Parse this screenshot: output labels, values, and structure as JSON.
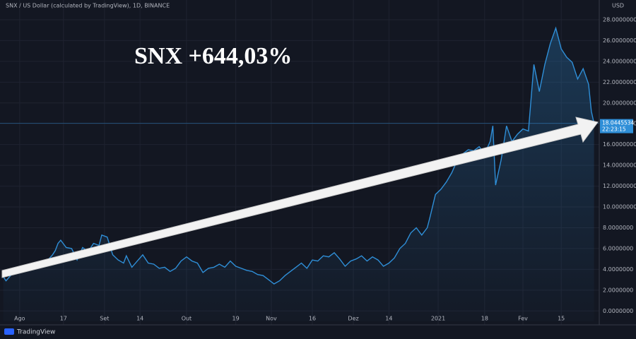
{
  "chart_data": {
    "type": "line",
    "title": "SNX / US Dollar (calculated by TradingView), 1D, BINANCE",
    "currency": "USD",
    "annotation": "SNX +644,03%",
    "countdown": "22:23:15",
    "brand": "TradingView",
    "color": "#2f8fd8",
    "grid": true,
    "x": [
      -6,
      -5,
      -3,
      0,
      2,
      4,
      6,
      8,
      10,
      12,
      13,
      14,
      15,
      17,
      19,
      21,
      23,
      25,
      27,
      29,
      30,
      32,
      34,
      36,
      38,
      39,
      41,
      43,
      45,
      47,
      49,
      51,
      53,
      55,
      57,
      59,
      61,
      63,
      65,
      67,
      69,
      71,
      73,
      75,
      77,
      79,
      81,
      83,
      85,
      87,
      89,
      91,
      93,
      95,
      97,
      99,
      101,
      103,
      105,
      107,
      109,
      111,
      113,
      115,
      117,
      119,
      121,
      123,
      125,
      127,
      129,
      131,
      133,
      135,
      137,
      139,
      141,
      143,
      145,
      147,
      149,
      150,
      152,
      154,
      156,
      158,
      160,
      162,
      164,
      166,
      168,
      170,
      172,
      173,
      174,
      176,
      178,
      180,
      182,
      184,
      186,
      188,
      190,
      192,
      194,
      196,
      198,
      200,
      202,
      204,
      206,
      208,
      209,
      210
    ],
    "values": [
      3.3,
      2.9,
      3.5,
      3.9,
      4.2,
      4.3,
      4.2,
      4.3,
      4.8,
      5.4,
      5.8,
      6.5,
      6.8,
      6.1,
      6.0,
      4.9,
      6.1,
      5.7,
      6.5,
      6.3,
      7.3,
      7.1,
      5.4,
      4.9,
      4.6,
      5.3,
      4.2,
      4.8,
      5.4,
      4.6,
      4.5,
      4.1,
      4.2,
      3.8,
      4.1,
      4.8,
      5.2,
      4.8,
      4.6,
      3.7,
      4.1,
      4.2,
      4.5,
      4.2,
      4.8,
      4.3,
      4.1,
      3.9,
      3.8,
      3.5,
      3.4,
      3.0,
      2.6,
      2.9,
      3.4,
      3.8,
      4.2,
      4.6,
      4.1,
      4.9,
      4.8,
      5.3,
      5.2,
      5.6,
      5.0,
      4.3,
      4.8,
      5.0,
      5.3,
      4.8,
      5.2,
      4.9,
      4.3,
      4.6,
      5.1,
      6.0,
      6.5,
      7.5,
      8.0,
      7.3,
      8.0,
      9.0,
      11.2,
      11.7,
      12.4,
      13.3,
      14.5,
      15.1,
      15.5,
      15.4,
      15.8,
      15.1,
      16.3,
      17.8,
      12.1,
      14.5,
      17.8,
      16.3,
      17.0,
      17.5,
      17.3,
      23.7,
      21.1,
      23.7,
      25.7,
      27.2,
      25.2,
      24.4,
      23.9,
      22.3,
      23.3,
      21.8,
      19.2,
      18.0445534
    ],
    "xlim": [
      -7.2,
      211.9
    ],
    "xticks": [
      {
        "value": 0,
        "label": "Ago"
      },
      {
        "value": 16,
        "label": "17"
      },
      {
        "value": 31,
        "label": "Set"
      },
      {
        "value": 44,
        "label": "14"
      },
      {
        "value": 61,
        "label": "Out"
      },
      {
        "value": 79,
        "label": "19"
      },
      {
        "value": 92,
        "label": "Nov"
      },
      {
        "value": 107,
        "label": "16"
      },
      {
        "value": 122,
        "label": "Dez"
      },
      {
        "value": 135,
        "label": "14"
      },
      {
        "value": 153,
        "label": "2021"
      },
      {
        "value": 170,
        "label": "18"
      },
      {
        "value": 184,
        "label": "Fev"
      },
      {
        "value": 198,
        "label": "15"
      }
    ],
    "ylim": [
      -1,
      29.9
    ],
    "yticks": [
      {
        "value": 0,
        "label": "0.0000000"
      },
      {
        "value": 2,
        "label": "2.0000000"
      },
      {
        "value": 4,
        "label": "4.0000000"
      },
      {
        "value": 6,
        "label": "6.0000000"
      },
      {
        "value": 8,
        "label": "8.0000000"
      },
      {
        "value": 10,
        "label": "10.0000000"
      },
      {
        "value": 12,
        "label": "12.0000000"
      },
      {
        "value": 14,
        "label": "14.0000000"
      },
      {
        "value": 16,
        "label": "16.0000000"
      },
      {
        "value": 18,
        "label": "18.0000000"
      },
      {
        "value": 20,
        "label": "20.0000000"
      },
      {
        "value": 22,
        "label": "22.0000000"
      },
      {
        "value": 24,
        "label": "24.0000000"
      },
      {
        "value": 26,
        "label": "26.0000000"
      },
      {
        "value": 28,
        "label": "28.0000000"
      }
    ]
  }
}
